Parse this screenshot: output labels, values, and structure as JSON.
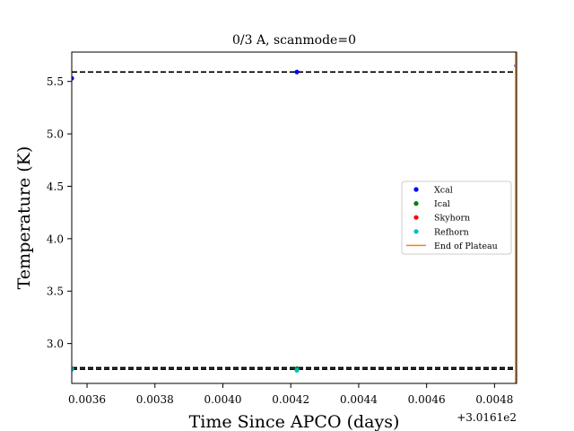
{
  "chart_data": {
    "type": "scatter",
    "title": "0/3 A, scanmode=0",
    "xlabel": "Time Since APCO (days)",
    "ylabel": "Temperature (K)",
    "x_offset_label": "+3.0161e2",
    "xlim": [
      0.003555,
      0.004865
    ],
    "ylim": [
      2.62,
      5.78
    ],
    "x_ticks": [
      0.0036,
      0.0038,
      0.004,
      0.0042,
      0.0044,
      0.0046,
      0.0048
    ],
    "x_tick_labels": [
      "0.0036",
      "0.0038",
      "0.0040",
      "0.0042",
      "0.0044",
      "0.0046",
      "0.0048"
    ],
    "y_ticks": [
      3.0,
      3.5,
      4.0,
      4.5,
      5.0,
      5.5
    ],
    "y_tick_labels": [
      "3.0",
      "3.5",
      "4.0",
      "4.5",
      "5.0",
      "5.5"
    ],
    "grid": false,
    "legend_placement": "center-right",
    "series": [
      {
        "name": "Xcal",
        "kind": "points",
        "color": "#0000ff",
        "points": [
          [
            0.003555,
            5.53
          ],
          [
            0.004218,
            5.59
          ],
          [
            0.004865,
            5.65
          ]
        ]
      },
      {
        "name": "Ical",
        "kind": "points",
        "color": "#008000",
        "points": [
          [
            0.003555,
            2.76
          ],
          [
            0.004218,
            2.76
          ]
        ]
      },
      {
        "name": "Skyhorn",
        "kind": "points",
        "color": "#ff0000",
        "points": []
      },
      {
        "name": "Refhorn",
        "kind": "points",
        "color": "#00bfbf",
        "points": [
          [
            0.003555,
            2.755
          ],
          [
            0.004218,
            2.745
          ]
        ]
      },
      {
        "name": "End of Plateau",
        "kind": "vline",
        "color": "#ff7f0e",
        "x": 0.004862
      }
    ],
    "reference_lines": [
      {
        "y": 5.59,
        "style": "dashed",
        "color": "#000000"
      },
      {
        "y": 2.77,
        "style": "dashed",
        "color": "#000000"
      },
      {
        "y": 2.755,
        "style": "dashed",
        "color": "#000000"
      }
    ]
  }
}
